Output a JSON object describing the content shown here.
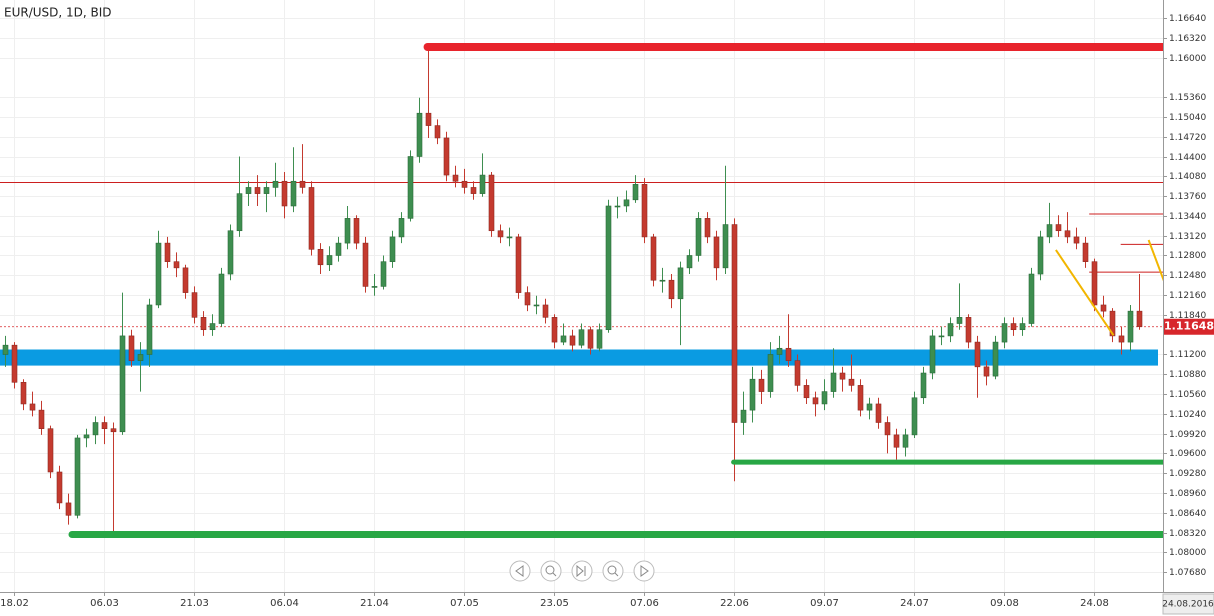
{
  "chart_data": {
    "type": "candlestick",
    "title": "EUR/USD, 1D, BID",
    "date_label": "24.08.2016",
    "up_color": "#3e8e50",
    "down_color": "#c43a2f",
    "grid": true,
    "ylim": [
      1.0736,
      1.1693
    ],
    "xlim": [
      -0.5,
      128.7
    ],
    "yticks": [
      {
        "value": 1.1664,
        "label": "1.16640"
      },
      {
        "value": 1.1632,
        "label": "1.16320"
      },
      {
        "value": 1.16,
        "label": "1.16000"
      },
      {
        "value": 1.1536,
        "label": "1.15360"
      },
      {
        "value": 1.1504,
        "label": "1.15040"
      },
      {
        "value": 1.1472,
        "label": "1.14720"
      },
      {
        "value": 1.144,
        "label": "1.14400"
      },
      {
        "value": 1.1408,
        "label": "1.14080"
      },
      {
        "value": 1.1376,
        "label": "1.13760"
      },
      {
        "value": 1.1344,
        "label": "1.13440"
      },
      {
        "value": 1.1312,
        "label": "1.13120"
      },
      {
        "value": 1.128,
        "label": "1.12800"
      },
      {
        "value": 1.1248,
        "label": "1.12480"
      },
      {
        "value": 1.1216,
        "label": "1.12160"
      },
      {
        "value": 1.1184,
        "label": "1.11840"
      },
      {
        "value": 1.112,
        "label": "1.11200"
      },
      {
        "value": 1.1088,
        "label": "1.10880"
      },
      {
        "value": 1.1056,
        "label": "1.10560"
      },
      {
        "value": 1.1024,
        "label": "1.10240"
      },
      {
        "value": 1.0992,
        "label": "1.09920"
      },
      {
        "value": 1.096,
        "label": "1.09600"
      },
      {
        "value": 1.0928,
        "label": "1.09280"
      },
      {
        "value": 1.0896,
        "label": "1.08960"
      },
      {
        "value": 1.0864,
        "label": "1.08640"
      },
      {
        "value": 1.0832,
        "label": "1.08320"
      },
      {
        "value": 1.08,
        "label": "1.08000"
      },
      {
        "value": 1.0768,
        "label": "1.07680"
      }
    ],
    "xticks": [
      {
        "value": 1,
        "label": "18.02"
      },
      {
        "value": 11,
        "label": "06.03"
      },
      {
        "value": 21,
        "label": "21.03"
      },
      {
        "value": 31,
        "label": "06.04"
      },
      {
        "value": 41,
        "label": "21.04"
      },
      {
        "value": 51,
        "label": "07.05"
      },
      {
        "value": 61,
        "label": "23.05"
      },
      {
        "value": 71,
        "label": "07.06"
      },
      {
        "value": 81,
        "label": "22.06"
      },
      {
        "value": 91,
        "label": "09.07"
      },
      {
        "value": 101,
        "label": "24.07"
      },
      {
        "value": 111,
        "label": "09.08"
      },
      {
        "value": 121,
        "label": "24.08"
      }
    ],
    "candles": [
      [
        1.112,
        1.115,
        1.11,
        1.1135
      ],
      [
        1.1135,
        1.114,
        1.1065,
        1.1075
      ],
      [
        1.1075,
        1.108,
        1.103,
        1.104
      ],
      [
        1.104,
        1.106,
        1.102,
        1.103
      ],
      [
        1.103,
        1.1045,
        1.099,
        1.1
      ],
      [
        1.1,
        1.1005,
        1.092,
        1.093
      ],
      [
        1.093,
        1.094,
        1.087,
        1.088
      ],
      [
        1.088,
        1.0895,
        1.0845,
        1.086
      ],
      [
        1.086,
        1.099,
        1.0855,
        1.0985
      ],
      [
        1.0985,
        1.1,
        1.097,
        1.099
      ],
      [
        1.099,
        1.102,
        1.0975,
        1.101
      ],
      [
        1.101,
        1.102,
        1.0975,
        1.1
      ],
      [
        1.1,
        1.101,
        1.0832,
        1.0995
      ],
      [
        1.0995,
        1.122,
        1.099,
        1.115
      ],
      [
        1.115,
        1.116,
        1.11,
        1.111
      ],
      [
        1.111,
        1.114,
        1.106,
        1.112
      ],
      [
        1.112,
        1.121,
        1.11,
        1.12
      ],
      [
        1.12,
        1.132,
        1.1195,
        1.13
      ],
      [
        1.13,
        1.131,
        1.126,
        1.127
      ],
      [
        1.127,
        1.1285,
        1.1245,
        1.126
      ],
      [
        1.126,
        1.1265,
        1.121,
        1.122
      ],
      [
        1.122,
        1.123,
        1.117,
        1.118
      ],
      [
        1.118,
        1.119,
        1.115,
        1.116
      ],
      [
        1.116,
        1.1185,
        1.115,
        1.117
      ],
      [
        1.117,
        1.126,
        1.1165,
        1.125
      ],
      [
        1.125,
        1.133,
        1.124,
        1.132
      ],
      [
        1.132,
        1.144,
        1.131,
        1.138
      ],
      [
        1.138,
        1.14,
        1.136,
        1.139
      ],
      [
        1.139,
        1.141,
        1.136,
        1.138
      ],
      [
        1.138,
        1.14,
        1.135,
        1.139
      ],
      [
        1.139,
        1.143,
        1.1375,
        1.14
      ],
      [
        1.14,
        1.1415,
        1.134,
        1.136
      ],
      [
        1.136,
        1.1455,
        1.135,
        1.14
      ],
      [
        1.14,
        1.146,
        1.138,
        1.139
      ],
      [
        1.139,
        1.14,
        1.128,
        1.129
      ],
      [
        1.129,
        1.13,
        1.125,
        1.1265
      ],
      [
        1.1265,
        1.1295,
        1.1255,
        1.128
      ],
      [
        1.128,
        1.131,
        1.127,
        1.13
      ],
      [
        1.13,
        1.136,
        1.129,
        1.134
      ],
      [
        1.134,
        1.1345,
        1.129,
        1.13
      ],
      [
        1.13,
        1.131,
        1.122,
        1.123
      ],
      [
        1.123,
        1.125,
        1.1215,
        1.123
      ],
      [
        1.123,
        1.128,
        1.1225,
        1.127
      ],
      [
        1.127,
        1.132,
        1.126,
        1.131
      ],
      [
        1.131,
        1.135,
        1.13,
        1.134
      ],
      [
        1.134,
        1.145,
        1.1335,
        1.144
      ],
      [
        1.144,
        1.1535,
        1.143,
        1.151
      ],
      [
        1.151,
        1.1617,
        1.147,
        1.149
      ],
      [
        1.149,
        1.15,
        1.146,
        1.147
      ],
      [
        1.147,
        1.148,
        1.14,
        1.141
      ],
      [
        1.141,
        1.1425,
        1.139,
        1.14
      ],
      [
        1.14,
        1.142,
        1.138,
        1.139
      ],
      [
        1.139,
        1.14,
        1.137,
        1.138
      ],
      [
        1.138,
        1.1445,
        1.1375,
        1.141
      ],
      [
        1.141,
        1.1415,
        1.131,
        1.132
      ],
      [
        1.132,
        1.133,
        1.13,
        1.131
      ],
      [
        1.131,
        1.1325,
        1.1295,
        1.131
      ],
      [
        1.131,
        1.1315,
        1.121,
        1.122
      ],
      [
        1.122,
        1.123,
        1.119,
        1.12
      ],
      [
        1.12,
        1.1215,
        1.1185,
        1.12
      ],
      [
        1.12,
        1.121,
        1.117,
        1.118
      ],
      [
        1.118,
        1.1185,
        1.113,
        1.114
      ],
      [
        1.114,
        1.117,
        1.1135,
        1.115
      ],
      [
        1.115,
        1.116,
        1.1125,
        1.1135
      ],
      [
        1.1135,
        1.117,
        1.113,
        1.116
      ],
      [
        1.116,
        1.1165,
        1.112,
        1.113
      ],
      [
        1.113,
        1.117,
        1.1125,
        1.116
      ],
      [
        1.116,
        1.137,
        1.1155,
        1.136
      ],
      [
        1.136,
        1.1375,
        1.134,
        1.136
      ],
      [
        1.136,
        1.1385,
        1.135,
        1.137
      ],
      [
        1.137,
        1.141,
        1.1365,
        1.1395
      ],
      [
        1.1395,
        1.1405,
        1.13,
        1.131
      ],
      [
        1.131,
        1.1315,
        1.123,
        1.124
      ],
      [
        1.124,
        1.126,
        1.122,
        1.124
      ],
      [
        1.124,
        1.125,
        1.1195,
        1.121
      ],
      [
        1.121,
        1.127,
        1.1135,
        1.126
      ],
      [
        1.126,
        1.129,
        1.125,
        1.128
      ],
      [
        1.128,
        1.135,
        1.127,
        1.134
      ],
      [
        1.134,
        1.135,
        1.13,
        1.131
      ],
      [
        1.131,
        1.132,
        1.124,
        1.126
      ],
      [
        1.126,
        1.1425,
        1.125,
        1.133
      ],
      [
        1.133,
        1.134,
        1.0915,
        1.101
      ],
      [
        1.101,
        1.106,
        1.099,
        1.103
      ],
      [
        1.103,
        1.11,
        1.101,
        1.108
      ],
      [
        1.108,
        1.1095,
        1.104,
        1.106
      ],
      [
        1.106,
        1.114,
        1.105,
        1.112
      ],
      [
        1.112,
        1.115,
        1.1105,
        1.113
      ],
      [
        1.113,
        1.1185,
        1.11,
        1.111
      ],
      [
        1.111,
        1.112,
        1.106,
        1.107
      ],
      [
        1.107,
        1.108,
        1.104,
        1.105
      ],
      [
        1.105,
        1.106,
        1.102,
        1.104
      ],
      [
        1.104,
        1.108,
        1.103,
        1.106
      ],
      [
        1.106,
        1.113,
        1.105,
        1.109
      ],
      [
        1.109,
        1.11,
        1.106,
        1.108
      ],
      [
        1.108,
        1.112,
        1.106,
        1.107
      ],
      [
        1.107,
        1.108,
        1.102,
        1.103
      ],
      [
        1.103,
        1.105,
        1.1015,
        1.104
      ],
      [
        1.104,
        1.105,
        1.1,
        1.101
      ],
      [
        1.101,
        1.102,
        1.096,
        1.099
      ],
      [
        1.099,
        1.1,
        1.095,
        1.097
      ],
      [
        1.097,
        1.1,
        1.0955,
        1.099
      ],
      [
        1.099,
        1.106,
        1.0985,
        1.105
      ],
      [
        1.105,
        1.11,
        1.104,
        1.109
      ],
      [
        1.109,
        1.116,
        1.108,
        1.115
      ],
      [
        1.115,
        1.1165,
        1.1135,
        1.115
      ],
      [
        1.115,
        1.118,
        1.114,
        1.117
      ],
      [
        1.117,
        1.1235,
        1.116,
        1.118
      ],
      [
        1.118,
        1.1185,
        1.113,
        1.114
      ],
      [
        1.114,
        1.115,
        1.105,
        1.11
      ],
      [
        1.11,
        1.111,
        1.107,
        1.1085
      ],
      [
        1.1085,
        1.115,
        1.108,
        1.114
      ],
      [
        1.114,
        1.118,
        1.113,
        1.117
      ],
      [
        1.117,
        1.118,
        1.115,
        1.116
      ],
      [
        1.116,
        1.118,
        1.115,
        1.117
      ],
      [
        1.117,
        1.126,
        1.1165,
        1.125
      ],
      [
        1.125,
        1.132,
        1.124,
        1.131
      ],
      [
        1.131,
        1.1365,
        1.13,
        1.133
      ],
      [
        1.133,
        1.1345,
        1.131,
        1.132
      ],
      [
        1.132,
        1.135,
        1.13,
        1.131
      ],
      [
        1.131,
        1.1325,
        1.129,
        1.13
      ],
      [
        1.13,
        1.131,
        1.126,
        1.127
      ],
      [
        1.127,
        1.1275,
        1.119,
        1.12
      ],
      [
        1.12,
        1.1215,
        1.118,
        1.119
      ],
      [
        1.119,
        1.1195,
        1.114,
        1.115
      ],
      [
        1.115,
        1.1165,
        1.112,
        1.114
      ],
      [
        1.114,
        1.12,
        1.1125,
        1.119
      ],
      [
        1.119,
        1.125,
        1.116,
        1.1165
      ]
    ],
    "zone": {
      "low": 1.1102,
      "high": 1.1128,
      "from": -0.5,
      "color": "#0a9be2"
    },
    "levels": [
      {
        "price": 1.1617,
        "from": 47,
        "color": "#e8242c"
      },
      {
        "price": 1.0946,
        "from": 81,
        "color": "#28a745"
      },
      {
        "price": 1.0829,
        "from": 7.5,
        "color": "#28a745"
      }
    ],
    "thin_levels": [
      {
        "price": 1.1398,
        "from": -0.5,
        "color": "#cc1f1f"
      },
      {
        "price": 1.1347,
        "from": 120.5,
        "color": "#cc1f1f"
      },
      {
        "price": 1.1298,
        "from": 124,
        "color": "#cc1f1f"
      },
      {
        "price": 1.1253,
        "from": 120.5,
        "color": "#cc1f1f"
      }
    ],
    "trend_lines": [
      {
        "x": [
          116.8,
          123.2
        ],
        "y": [
          1.1289,
          1.1151
        ],
        "color": "#f2b600"
      },
      {
        "x": [
          127.1,
          129.6
        ],
        "y": [
          1.1305,
          1.1208
        ],
        "color": "#f2b600"
      }
    ],
    "last_price": 1.11648,
    "last_price_color": "#d7262b"
  }
}
